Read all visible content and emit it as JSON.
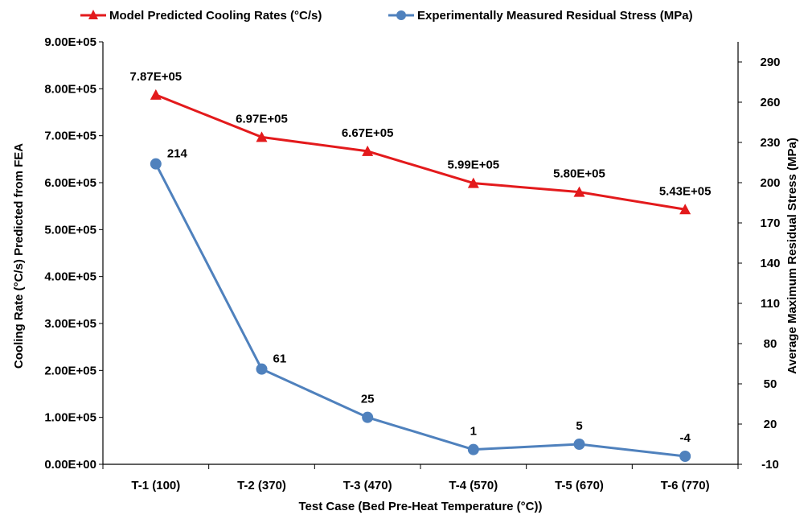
{
  "chart_data": {
    "type": "line",
    "categories": [
      "T-1 (100)",
      "T-2 (370)",
      "T-3 (470)",
      "T-4 (570)",
      "T-5 (670)",
      "T-6 (770)"
    ],
    "series": [
      {
        "name": "Model Predicted Cooling Rates (°C/s)",
        "axis": "left",
        "color": "#e31a1c",
        "marker": "triangle",
        "values": [
          787000,
          697000,
          667000,
          599000,
          580000,
          543000
        ],
        "labels": [
          "7.87E+05",
          "6.97E+05",
          "6.67E+05",
          "5.99E+05",
          "5.80E+05",
          "5.43E+05"
        ]
      },
      {
        "name": "Experimentally Measured Residual Stress (MPa)",
        "axis": "right",
        "color": "#4f81bd",
        "marker": "circle",
        "values": [
          214,
          61,
          25,
          1,
          5,
          -4
        ],
        "labels": [
          "214",
          "61",
          "25",
          "1",
          "5",
          "-4"
        ]
      }
    ],
    "xlabel": "Test Case (Bed Pre-Heat Temperature (°C))",
    "ylabel_left": "Cooling Rate (°C/s) Predicted from FEA",
    "ylabel_right": "Average Maximum Residual Stress (MPa)",
    "ylim_left": [
      0,
      900000
    ],
    "ylim_right": [
      -10,
      305
    ],
    "yticks_left": [
      "0.00E+00",
      "1.00E+05",
      "2.00E+05",
      "3.00E+05",
      "4.00E+05",
      "5.00E+05",
      "6.00E+05",
      "7.00E+05",
      "8.00E+05",
      "9.00E+05"
    ],
    "yticks_right": [
      "-10",
      "20",
      "50",
      "80",
      "110",
      "140",
      "170",
      "200",
      "230",
      "260",
      "290"
    ],
    "grid": false,
    "legend_position": "top"
  }
}
